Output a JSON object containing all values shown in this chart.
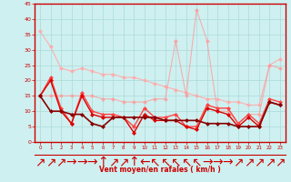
{
  "xlabel": "Vent moyen/en rafales ( km/h )",
  "xlim": [
    -0.5,
    23.5
  ],
  "ylim": [
    0,
    45
  ],
  "yticks": [
    0,
    5,
    10,
    15,
    20,
    25,
    30,
    35,
    40,
    45
  ],
  "xticks": [
    0,
    1,
    2,
    3,
    4,
    5,
    6,
    7,
    8,
    9,
    10,
    11,
    12,
    13,
    14,
    15,
    16,
    17,
    18,
    19,
    20,
    21,
    22,
    23
  ],
  "background_color": "#cff0f0",
  "grid_color": "#aadada",
  "xlabel_color": "#cc0000",
  "tick_color": "#cc0000",
  "axis_color": "#cc0000",
  "series": [
    {
      "y": [
        36,
        31,
        24,
        23,
        24,
        23,
        22,
        22,
        21,
        21,
        20,
        19,
        18,
        17,
        16,
        15,
        14,
        14,
        13,
        13,
        12,
        12,
        25,
        27
      ],
      "color": "#ffaaaa",
      "alpha": 0.9,
      "lw": 0.8,
      "ms": 2.5,
      "zorder": 2
    },
    {
      "y": [
        15,
        15,
        15,
        15,
        15,
        15,
        14,
        14,
        13,
        13,
        13,
        14,
        14,
        33,
        15,
        43,
        33,
        10,
        10,
        6,
        9,
        9,
        25,
        24
      ],
      "color": "#ff9999",
      "alpha": 0.75,
      "lw": 0.8,
      "ms": 2.5,
      "zorder": 3
    },
    {
      "y": [
        15,
        21,
        11,
        6,
        16,
        10,
        9,
        9,
        8,
        5,
        11,
        8,
        8,
        9,
        5,
        5,
        12,
        11,
        11,
        6,
        9,
        6,
        14,
        13
      ],
      "color": "#ff4444",
      "alpha": 1.0,
      "lw": 1.0,
      "ms": 2.5,
      "zorder": 4
    },
    {
      "y": [
        15,
        20,
        10,
        6,
        15,
        9,
        8,
        8,
        8,
        3,
        9,
        7,
        7,
        7,
        5,
        4,
        11,
        10,
        9,
        5,
        8,
        5,
        13,
        12
      ],
      "color": "#dd0000",
      "alpha": 1.0,
      "lw": 1.0,
      "ms": 2.5,
      "zorder": 5
    },
    {
      "y": [
        15,
        10,
        10,
        9,
        9,
        6,
        5,
        8,
        8,
        8,
        8,
        8,
        7,
        7,
        7,
        7,
        6,
        6,
        6,
        5,
        5,
        5,
        13,
        12
      ],
      "color": "#880000",
      "alpha": 1.0,
      "lw": 1.2,
      "ms": 2.5,
      "zorder": 6
    }
  ],
  "arrow_symbols": [
    "↗",
    "↗",
    "↗",
    "→",
    "→",
    "→",
    "↑",
    "↗",
    "↗",
    "↑",
    "←",
    "↖",
    "↖",
    "↖",
    "↖",
    "↖",
    "→",
    "→",
    "→",
    "↗",
    "↗",
    "↗",
    "↗",
    "↗"
  ]
}
